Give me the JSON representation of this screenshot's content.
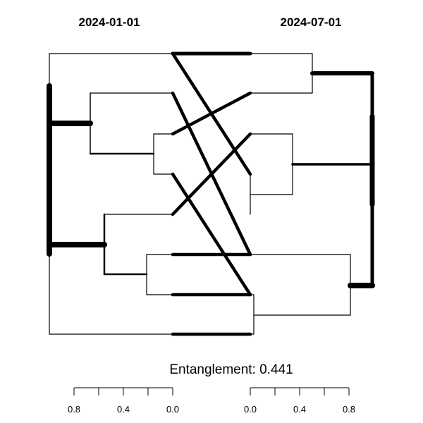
{
  "chart_data": {
    "type": "tanglegram",
    "left_title": "2024-01-01",
    "right_title": "2024-07-01",
    "entanglement_label": "Entanglement: 0.441",
    "left_axis": {
      "ticks": [
        "0.8",
        "0.4",
        "0.0"
      ],
      "range": [
        0.8,
        0.0
      ]
    },
    "right_axis": {
      "ticks": [
        "0.0",
        "0.4",
        "0.8"
      ],
      "range": [
        0.0,
        0.8
      ]
    },
    "leaf_count": 8,
    "left_tree": {
      "h": 1.0,
      "children": [
        {
          "h": 0.68,
          "children": [
            {
              "h": 0.58,
              "children": [
                {
                  "h": 0.15,
                  "children": [
                    {
                      "leaf": 0
                    },
                    {
                      "leaf": 1
                    }
                  ]
                },
                {
                  "h": 0.0,
                  "children": [
                    {
                      "leaf": 2
                    },
                    {
                      "leaf": 3
                    }
                  ]
                }
              ]
            },
            {
              "h": 0.58,
              "children": [
                {
                  "h": 0.2,
                  "children": [
                    {
                      "leaf": 4
                    },
                    {
                      "leaf": 5
                    }
                  ]
                },
                {
                  "h": 0.0,
                  "children": [
                    {
                      "leaf": 6
                    },
                    {
                      "leaf": 7
                    }
                  ]
                }
              ]
            }
          ]
        },
        {
          "leaf": 8
        }
      ]
    },
    "right_tree": {
      "h": 0.97,
      "children": [
        {
          "h": 0.52,
          "children": [
            {
              "h": 0.0,
              "children": [
                {
                  "leaf": 0
                },
                {
                  "leaf": 1
                }
              ]
            },
            {
              "h": 0.35,
              "children": [
                {
                  "h": 0.0,
                  "children": [
                    {
                      "leaf": 2
                    },
                    {
                      "leaf": 3
                    }
                  ]
                },
                {
                  "h": 0.35,
                  "children": [
                    {
                      "leaf": 4
                    },
                    {
                      "leaf": 5
                    }
                  ]
                }
              ]
            }
          ]
        },
        {
          "h": 0.82,
          "children": [
            {
              "h": 0.0,
              "children": [
                {
                  "leaf": 6
                },
                {
                  "leaf": 7
                }
              ]
            },
            {
              "h": 0.82,
              "children": [
                {
                  "h": 0.02,
                  "children": [
                    {
                      "leaf": 8
                    },
                    {
                      "leaf": 9
                    }
                  ]
                },
                {
                  "leaf": 10
                }
              ]
            }
          ]
        }
      ]
    },
    "connections": [
      {
        "left_leaf": 1,
        "right_leaf": 6
      },
      {
        "left_leaf": 3,
        "right_leaf": 7
      },
      {
        "left_leaf": 2,
        "right_leaf": 1
      },
      {
        "left_leaf": 4,
        "right_leaf": 2
      },
      {
        "left_leaf": 5,
        "right_leaf": 5
      },
      {
        "left_leaf": 6,
        "right_leaf": 9
      },
      {
        "left_leaf": 8,
        "right_leaf": 3
      },
      {
        "left_leaf": 7,
        "right_leaf": 10
      }
    ]
  }
}
